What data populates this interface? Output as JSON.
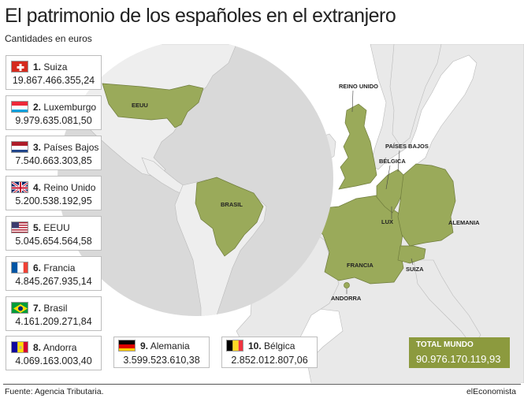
{
  "title": "El patrimonio de los españoles en el extranjero",
  "subtitle": "Cantidades en euros",
  "ranking": [
    {
      "rank": "1.",
      "name": "Suiza",
      "value": "19.867.466.355,24",
      "flag": "switzerland-flag-icon"
    },
    {
      "rank": "2.",
      "name": "Luxemburgo",
      "value": "9.979.635.081,50",
      "flag": "luxembourg-flag-icon"
    },
    {
      "rank": "3.",
      "name": "Países Bajos",
      "value": "7.540.663.303,85",
      "flag": "netherlands-flag-icon"
    },
    {
      "rank": "4.",
      "name": "Reino Unido",
      "value": "5.200.538.192,95",
      "flag": "uk-flag-icon"
    },
    {
      "rank": "5.",
      "name": "EEUU",
      "value": "5.045.654.564,58",
      "flag": "usa-flag-icon"
    },
    {
      "rank": "6.",
      "name": "Francia",
      "value": "4.845.267.935,14",
      "flag": "france-flag-icon"
    },
    {
      "rank": "7.",
      "name": "Brasil",
      "value": "4.161.209.271,84",
      "flag": "brazil-flag-icon"
    },
    {
      "rank": "8.",
      "name": "Andorra",
      "value": "4.069.163.003,40",
      "flag": "andorra-flag-icon"
    },
    {
      "rank": "9.",
      "name": "Alemania",
      "value": "3.599.523.610,38",
      "flag": "germany-flag-icon"
    },
    {
      "rank": "10.",
      "name": "Bélgica",
      "value": "2.852.012.807,06",
      "flag": "belgium-flag-icon"
    }
  ],
  "total": {
    "label": "TOTAL MUNDO",
    "value": "90.976.170.119,93"
  },
  "map_labels": {
    "eeuu": "EEUU",
    "brasil": "BRASIL",
    "reino_unido": "REINO UNIDO",
    "paises_bajos": "PAÍSES BAJOS",
    "belgica": "BÉLGICA",
    "lux": "LUX",
    "alemania": "ALEMANIA",
    "francia": "FRANCIA",
    "suiza": "SUIZA",
    "andorra": "ANDORRA"
  },
  "colors": {
    "highlight": "#9aaa5a",
    "land": "#e9e9e9",
    "sea": "#ffffff",
    "circle": "#d9d9d9",
    "total_bg": "#8c9a3e"
  },
  "footer": {
    "source": "Fuente: Agencia Tributaria.",
    "credit": "elEconomista"
  }
}
